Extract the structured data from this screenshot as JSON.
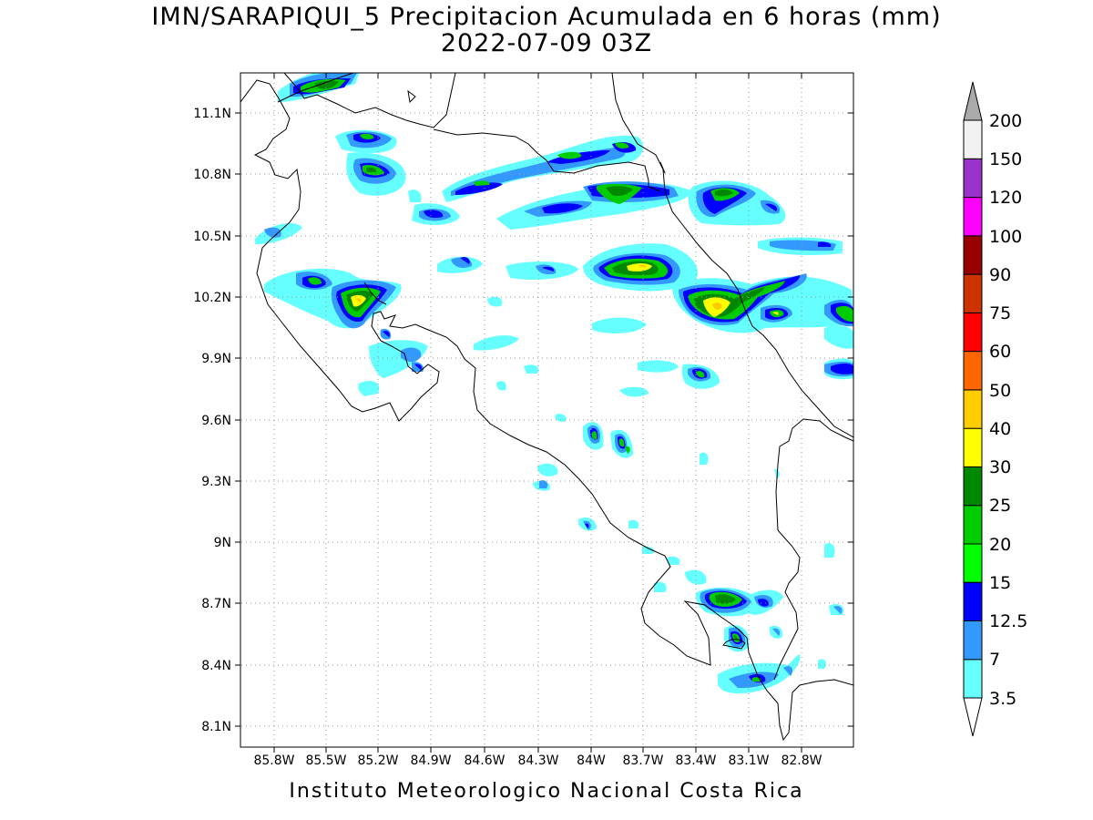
{
  "title": {
    "line1": "IMN/SARAPIQUI_5 Precipitacion Acumulada en 6 horas (mm)",
    "line2": "2022-07-09 03Z"
  },
  "footer": "Instituto Meteorologico Nacional Costa Rica",
  "map": {
    "lon_range": [
      -86.0,
      -82.5
    ],
    "lat_range": [
      8.0,
      11.3
    ],
    "x_ticks": [
      "85.8W",
      "85.5W",
      "85.2W",
      "84.9W",
      "84.6W",
      "84.3W",
      "84W",
      "83.7W",
      "83.4W",
      "83.1W",
      "82.8W"
    ],
    "y_ticks": [
      "11.1N",
      "10.8N",
      "10.5N",
      "10.2N",
      "9.9N",
      "9.6N",
      "9.3N",
      "9N",
      "8.7N",
      "8.4N",
      "8.1N"
    ],
    "gridlines": "dotted"
  },
  "colorbar": {
    "levels": [
      "3.5",
      "7",
      "12.5",
      "15",
      "20",
      "25",
      "30",
      "40",
      "50",
      "60",
      "75",
      "90",
      "100",
      "120",
      "150",
      "200"
    ],
    "colors": [
      "#66ffff",
      "#3399ff",
      "#0000ff",
      "#00ff00",
      "#00cc00",
      "#008800",
      "#ffff00",
      "#ffcc00",
      "#ff6600",
      "#ff0000",
      "#cc3300",
      "#990000",
      "#ff00ff",
      "#9933cc",
      "#f2f2f2",
      "#aaaaaa"
    ]
  }
}
